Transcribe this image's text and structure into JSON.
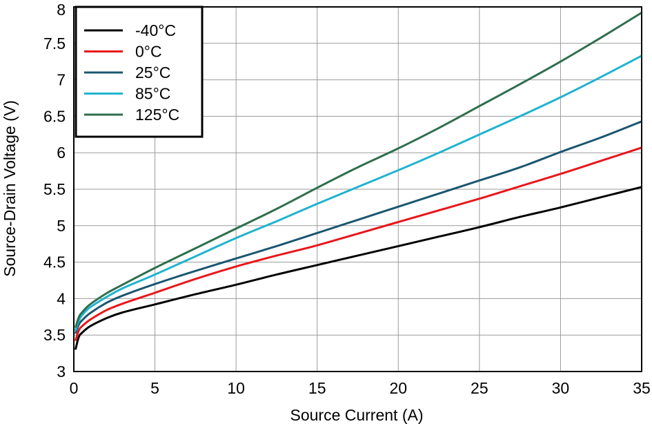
{
  "chart_data": {
    "type": "line",
    "title": "",
    "xlabel": "Source Current (A)",
    "ylabel": "Source-Drain Voltage (V)",
    "xlim": [
      0,
      35
    ],
    "ylim": [
      3,
      8
    ],
    "xticks": [
      "0",
      "5",
      "10",
      "15",
      "20",
      "25",
      "30",
      "35"
    ],
    "yticks": [
      "3",
      "3.5",
      "4",
      "4.5",
      "5",
      "5.5",
      "6",
      "6.5",
      "7",
      "7.5",
      "8"
    ],
    "grid": true,
    "legend_position": "top-left",
    "x": [
      0.1,
      0.3,
      0.5,
      1,
      2,
      3,
      5,
      7.5,
      10,
      12.5,
      15,
      17.5,
      20,
      22.5,
      25,
      27.5,
      30,
      32.5,
      35
    ],
    "series": [
      {
        "name": "-40°C",
        "color": "#000000",
        "values": [
          3.3,
          3.47,
          3.53,
          3.62,
          3.73,
          3.81,
          3.92,
          4.06,
          4.19,
          4.33,
          4.46,
          4.59,
          4.72,
          4.85,
          4.98,
          5.12,
          5.25,
          5.39,
          5.53
        ]
      },
      {
        "name": "0°C",
        "color": "#e8161b",
        "values": [
          3.42,
          3.56,
          3.62,
          3.71,
          3.84,
          3.93,
          4.08,
          4.27,
          4.44,
          4.59,
          4.73,
          4.89,
          5.05,
          5.21,
          5.37,
          5.54,
          5.71,
          5.89,
          6.07
        ]
      },
      {
        "name": "25°C",
        "color": "#1a5670",
        "values": [
          3.52,
          3.64,
          3.7,
          3.8,
          3.94,
          4.04,
          4.2,
          4.38,
          4.55,
          4.72,
          4.9,
          5.08,
          5.26,
          5.44,
          5.62,
          5.8,
          6.01,
          6.21,
          6.43
        ]
      },
      {
        "name": "85°C",
        "color": "#1fb3cf",
        "values": [
          3.56,
          3.69,
          3.77,
          3.88,
          4.02,
          4.14,
          4.33,
          4.58,
          4.83,
          5.06,
          5.3,
          5.53,
          5.76,
          6.0,
          6.25,
          6.5,
          6.76,
          7.04,
          7.33
        ]
      },
      {
        "name": "125°C",
        "color": "#2e6e4e",
        "values": [
          3.6,
          3.74,
          3.81,
          3.92,
          4.07,
          4.19,
          4.42,
          4.69,
          4.96,
          5.23,
          5.52,
          5.8,
          6.06,
          6.34,
          6.64,
          6.94,
          7.25,
          7.58,
          7.92
        ]
      }
    ]
  }
}
